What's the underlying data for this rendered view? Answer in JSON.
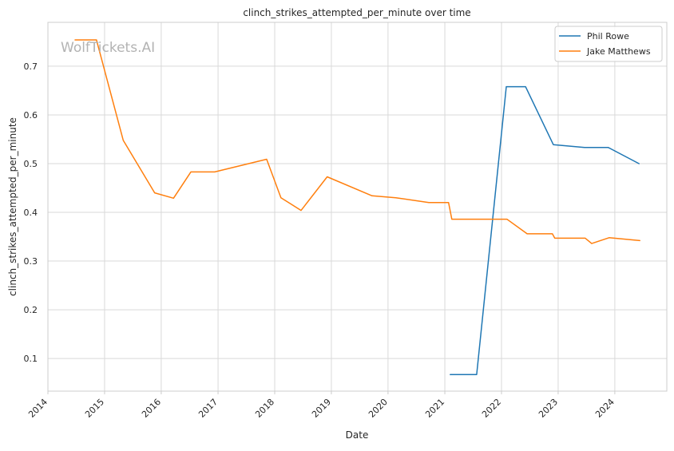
{
  "chart_data": {
    "type": "line",
    "title": "clinch_strikes_attempted_per_minute over time",
    "xlabel": "Date",
    "ylabel": "clinch_strikes_attempted_per_minute",
    "xlim": [
      "2014-01-01",
      "2024-12-01"
    ],
    "ylim": [
      0.033,
      0.79
    ],
    "x_ticks": [
      "2014",
      "2015",
      "2016",
      "2017",
      "2018",
      "2019",
      "2020",
      "2021",
      "2022",
      "2023",
      "2024"
    ],
    "y_ticks": [
      "0.1",
      "0.2",
      "0.3",
      "0.4",
      "0.5",
      "0.6",
      "0.7"
    ],
    "grid": true,
    "legend_position": "top-right",
    "watermark": "WolfTickets.AI",
    "series": [
      {
        "name": "Phil Rowe",
        "color": "#1f77b4",
        "points": [
          [
            "2021-02-05",
            0.067
          ],
          [
            "2021-07-25",
            0.067
          ],
          [
            "2022-02-01",
            0.658
          ],
          [
            "2022-06-05",
            0.658
          ],
          [
            "2022-12-01",
            0.539
          ],
          [
            "2023-06-20",
            0.533
          ],
          [
            "2023-11-20",
            0.533
          ],
          [
            "2024-06-05",
            0.5
          ]
        ]
      },
      {
        "name": "Jake Matthews",
        "color": "#ff7f0e",
        "points": [
          [
            "2014-06-25",
            0.754
          ],
          [
            "2014-11-10",
            0.754
          ],
          [
            "2015-05-01",
            0.548
          ],
          [
            "2015-11-20",
            0.44
          ],
          [
            "2016-03-20",
            0.429
          ],
          [
            "2016-07-10",
            0.483
          ],
          [
            "2016-12-10",
            0.483
          ],
          [
            "2017-11-10",
            0.509
          ],
          [
            "2018-02-10",
            0.43
          ],
          [
            "2018-06-20",
            0.404
          ],
          [
            "2018-12-05",
            0.473
          ],
          [
            "2019-09-20",
            0.434
          ],
          [
            "2020-02-20",
            0.43
          ],
          [
            "2020-09-20",
            0.42
          ],
          [
            "2021-01-25",
            0.42
          ],
          [
            "2021-02-15",
            0.386
          ],
          [
            "2022-02-05",
            0.386
          ],
          [
            "2022-06-15",
            0.356
          ],
          [
            "2022-11-25",
            0.356
          ],
          [
            "2022-12-10",
            0.347
          ],
          [
            "2023-06-25",
            0.347
          ],
          [
            "2023-08-05",
            0.336
          ],
          [
            "2023-11-25",
            0.348
          ],
          [
            "2024-06-10",
            0.342
          ]
        ]
      }
    ]
  }
}
